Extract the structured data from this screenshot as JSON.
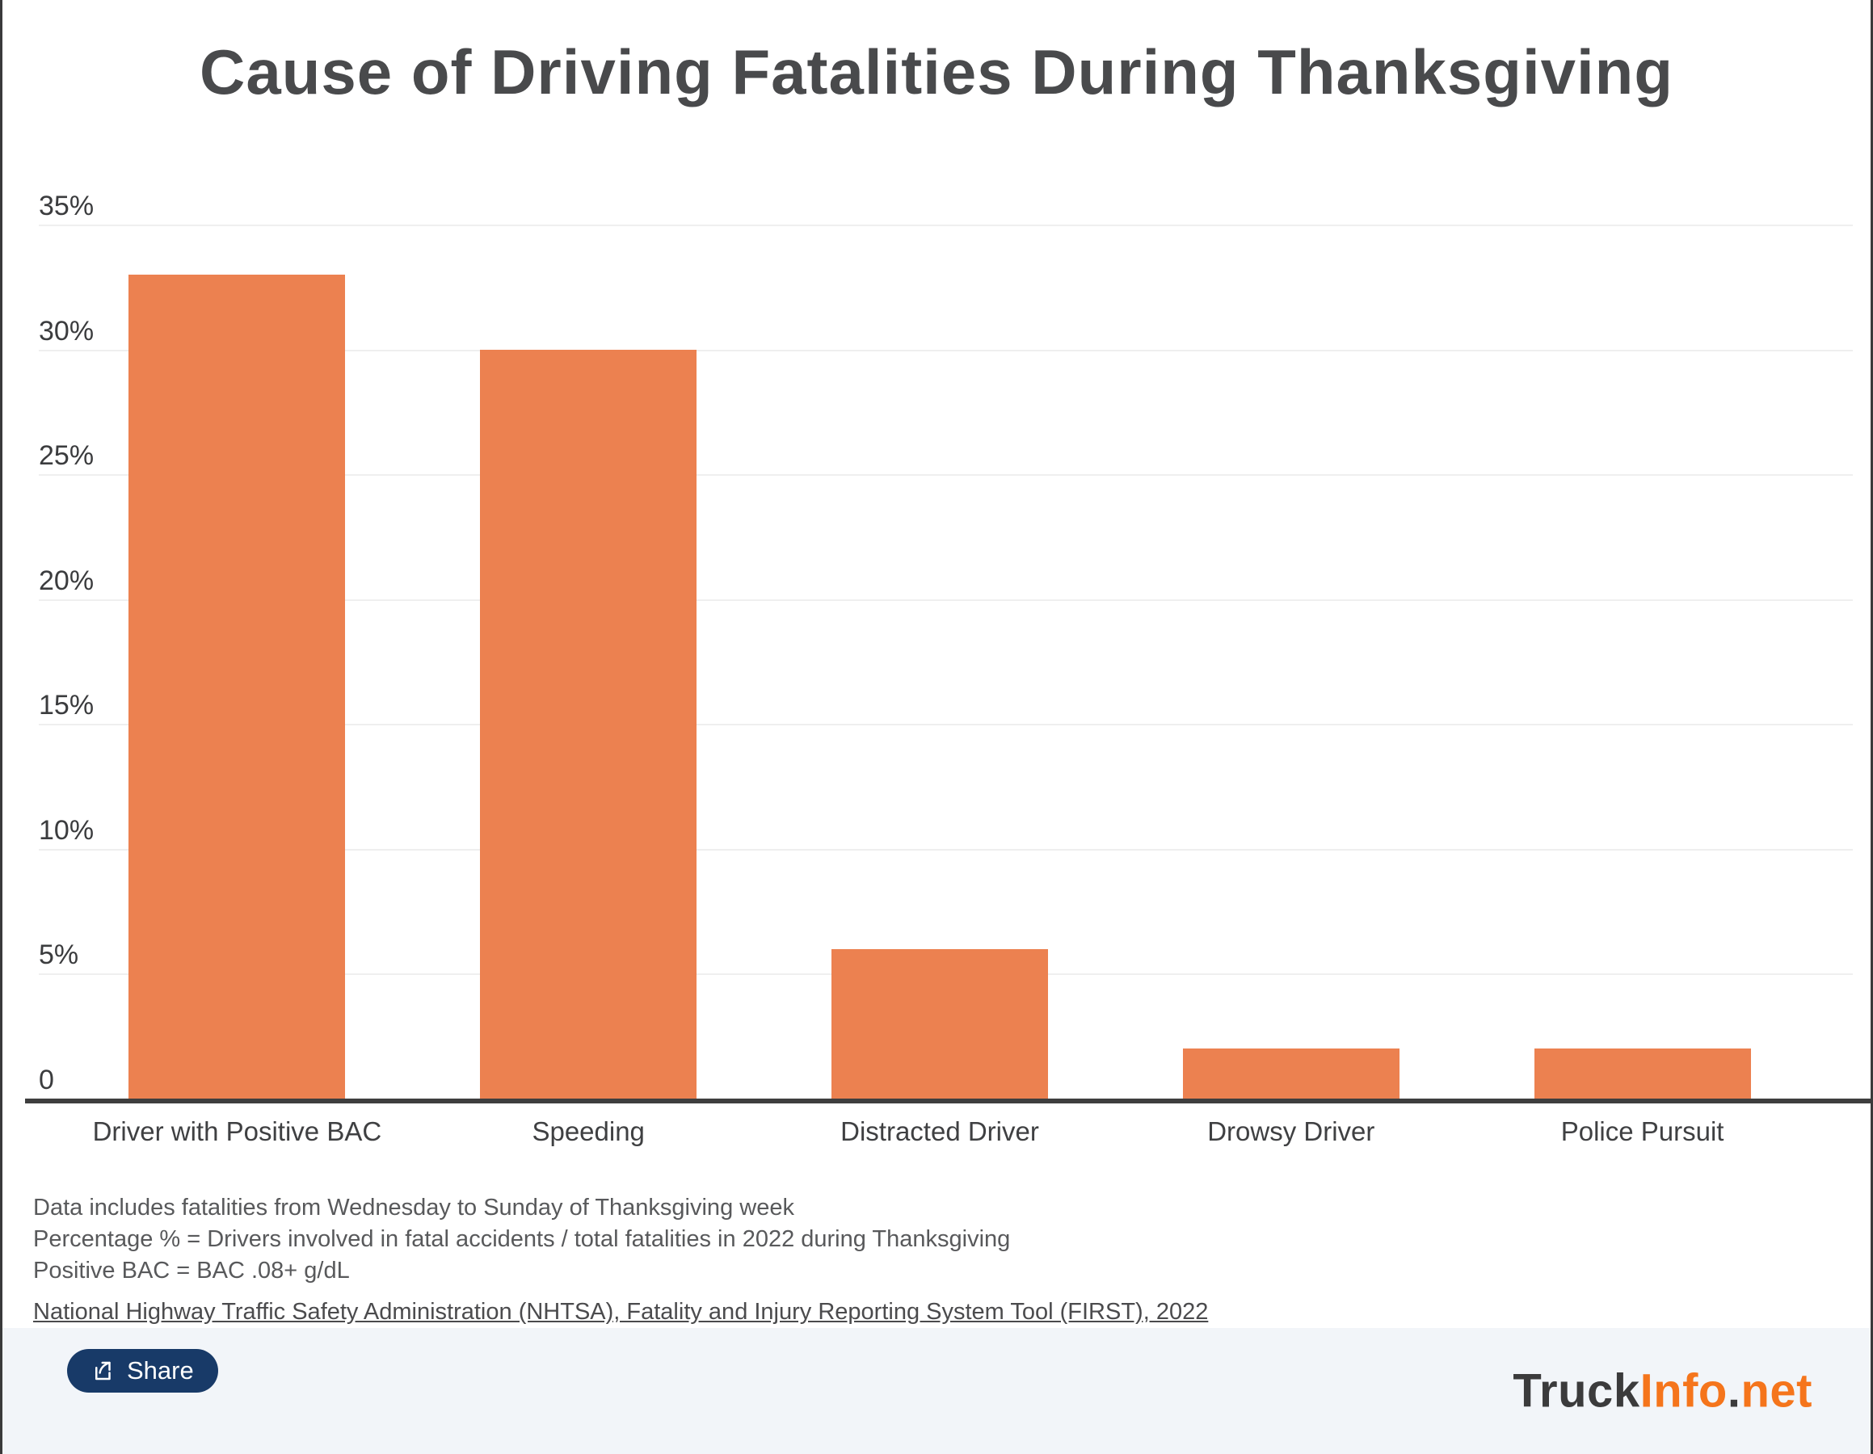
{
  "title": "Cause of Driving Fatalities During Thanksgiving",
  "chart_data": {
    "type": "bar",
    "title": "Cause of Driving Fatalities During Thanksgiving",
    "categories": [
      "Driver with Positive BAC",
      "Speeding",
      "Distracted Driver",
      "Drowsy Driver",
      "Police Pursuit"
    ],
    "values": [
      33,
      30,
      6,
      2,
      2
    ],
    "value_unit": "percent of fatalities",
    "ylim": [
      0,
      35
    ],
    "ytick_step": 5,
    "ytick_labels": [
      "35%",
      "30%",
      "25%",
      "20%",
      "15%",
      "10%",
      "5%",
      "0"
    ],
    "grid": "horizontal",
    "legend": "none",
    "bar_color": "#ec8150"
  },
  "notes": {
    "line1": "Data includes fatalities from Wednesday to Sunday of Thanksgiving week",
    "line2": "Percentage % = Drivers involved in fatal accidents / total fatalities in 2022 during Thanksgiving",
    "line3": "Positive BAC = BAC .08+ g/dL"
  },
  "source": {
    "label": "National Highway Traffic Safety Administration (NHTSA), Fatality and Injury Reporting System Tool (FIRST), 2022"
  },
  "footer": {
    "share_label": "Share",
    "logo_truck": "Truck",
    "logo_info": "Info",
    "logo_dot": ".",
    "logo_net": "net"
  },
  "colors": {
    "bar": "#ec8150",
    "axis_line": "#3e3e3e",
    "gridline": "#efefef",
    "title_text": "#494a4c",
    "note_text": "#58595b",
    "share_button_bg": "#183a68",
    "footer_bg": "#f2f5f9",
    "logo_orange": "#f5751c",
    "logo_dark": "#3b3b3c"
  }
}
